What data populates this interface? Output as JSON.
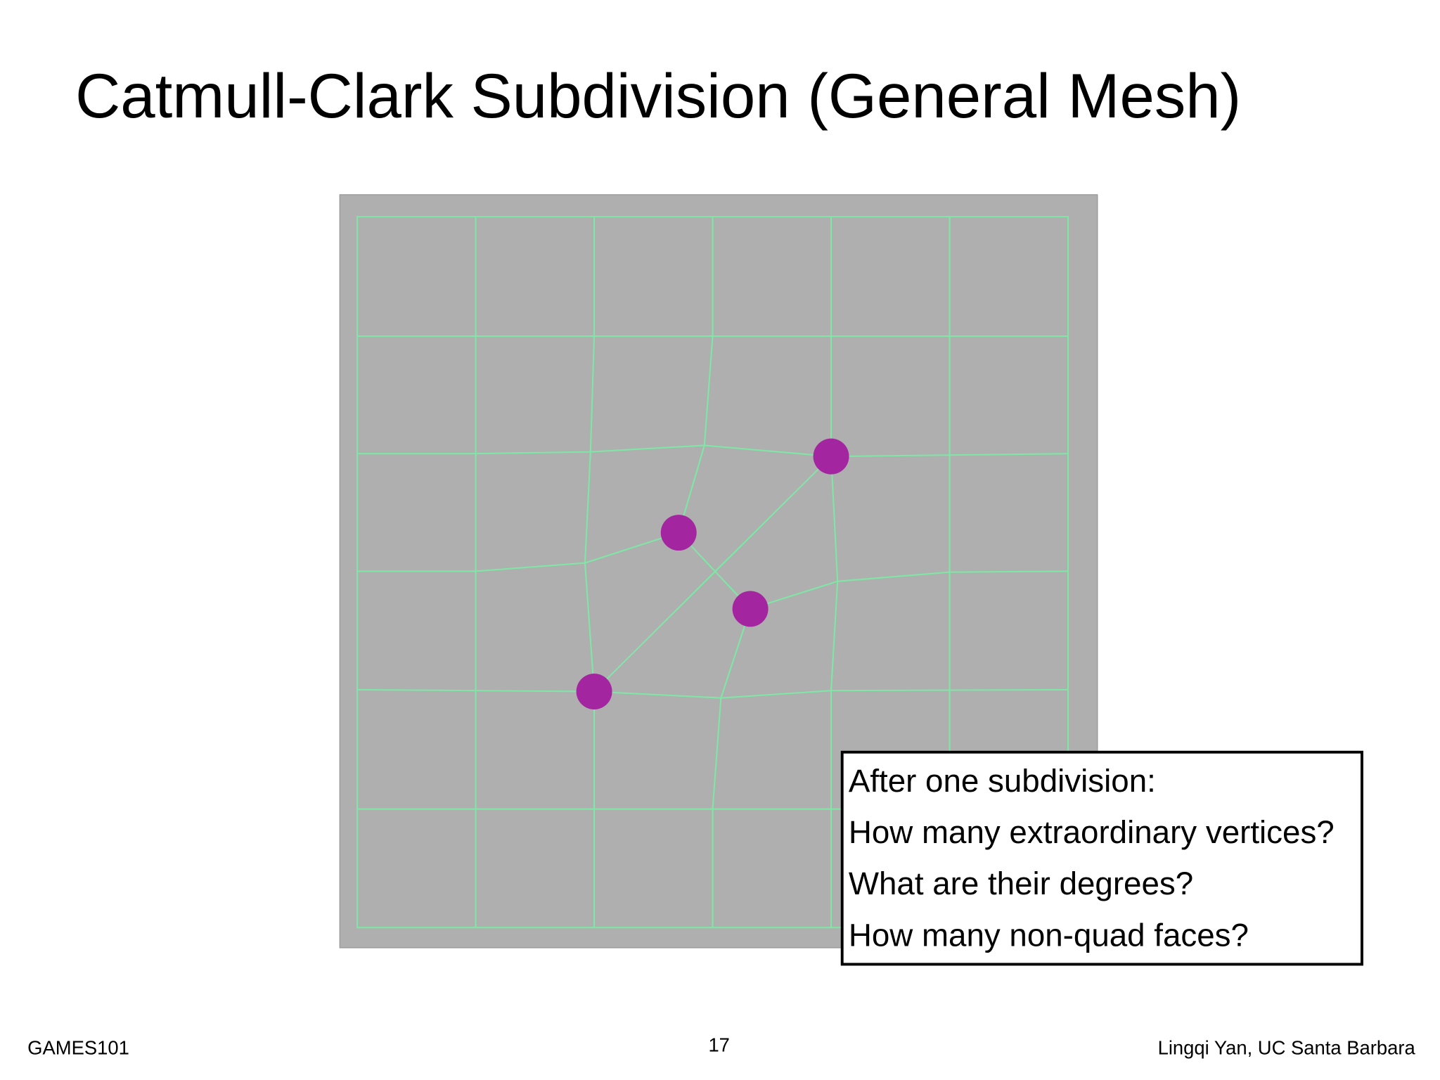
{
  "title": "Catmull-Clark Subdivision (General Mesh)",
  "questions": [
    "After one subdivision:",
    "How many extraordinary vertices?",
    "What are their degrees?",
    "How many non-quad faces?"
  ],
  "footer": {
    "left": "GAMES101",
    "page": "17",
    "right": "Lingqi Yan, UC Santa Barbara"
  }
}
